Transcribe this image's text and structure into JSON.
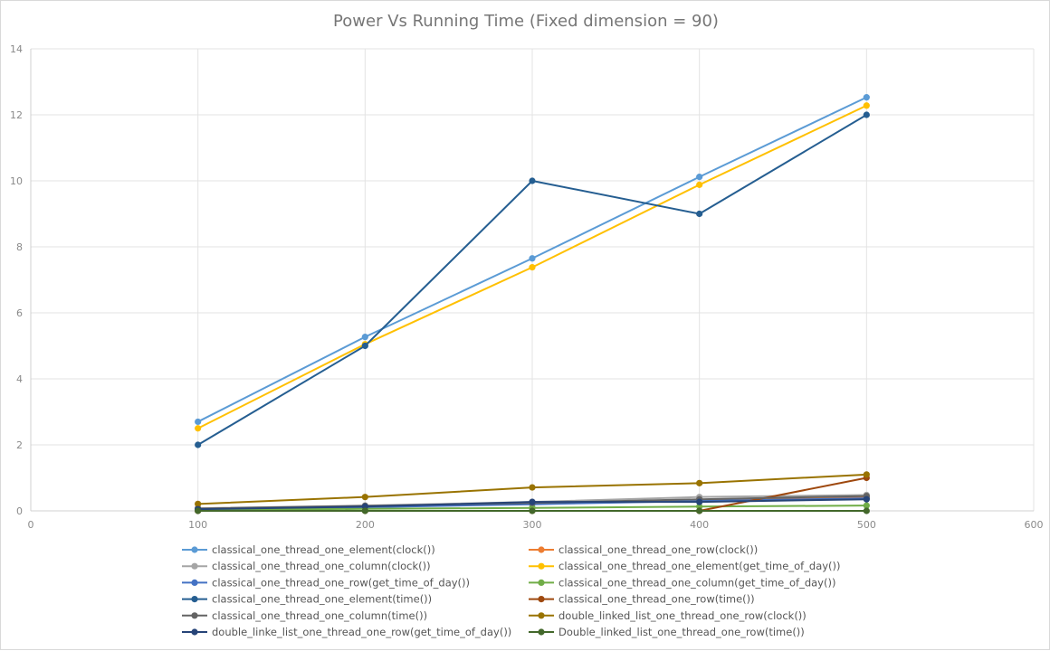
{
  "chart_data": {
    "type": "line",
    "title": "Power Vs Running Time (Fixed dimension = 90)",
    "xlabel": "",
    "ylabel": "",
    "xlim": [
      0,
      600
    ],
    "ylim": [
      0,
      14
    ],
    "xticks": [
      "0",
      "100",
      "200",
      "300",
      "400",
      "500",
      "600"
    ],
    "yticks": [
      "0",
      "2",
      "4",
      "6",
      "8",
      "10",
      "12",
      "14"
    ],
    "grid": true,
    "legend_position": "bottom",
    "x": [
      100,
      200,
      300,
      400,
      500
    ],
    "series": [
      {
        "name": "classical_one_thread_one_element(clock())",
        "color": "#5b9bd5",
        "values": [
          2.7,
          5.27,
          7.65,
          10.12,
          12.53
        ]
      },
      {
        "name": "classical_one_thread_one_row(clock())",
        "color": "#ed7d31",
        "values": [
          0.06,
          0.12,
          0.22,
          0.32,
          0.42
        ]
      },
      {
        "name": "classical_one_thread_one_column(clock())",
        "color": "#a5a5a5",
        "values": [
          0.08,
          0.16,
          0.27,
          0.42,
          0.48
        ]
      },
      {
        "name": "classical_one_thread_one_element(get_time_of_day())",
        "color": "#ffc000",
        "values": [
          2.5,
          5.05,
          7.38,
          9.88,
          12.28
        ]
      },
      {
        "name": "classical_one_thread_one_row(get_time_of_day())",
        "color": "#4472c4",
        "values": [
          0.05,
          0.11,
          0.2,
          0.3,
          0.38
        ]
      },
      {
        "name": "classical_one_thread_one_column(get_time_of_day())",
        "color": "#70ad47",
        "values": [
          0.03,
          0.06,
          0.09,
          0.13,
          0.16
        ]
      },
      {
        "name": "classical_one_thread_one_element(time())",
        "color": "#255e91",
        "values": [
          2,
          5,
          10,
          9,
          12
        ]
      },
      {
        "name": "classical_one_thread_one_row(time())",
        "color": "#9e480e",
        "values": [
          0,
          0,
          0,
          0,
          1
        ]
      },
      {
        "name": "classical_one_thread_one_column(time())",
        "color": "#636363",
        "values": [
          0.07,
          0.15,
          0.24,
          0.35,
          0.45
        ]
      },
      {
        "name": "double_linked_list_one_thread_one_row(clock())",
        "color": "#997300",
        "values": [
          0.21,
          0.42,
          0.71,
          0.84,
          1.1
        ]
      },
      {
        "name": "double_linke_list_one_thread_one_row(get_time_of_day())",
        "color": "#264478",
        "values": [
          0.05,
          0.13,
          0.27,
          0.27,
          0.35
        ]
      },
      {
        "name": "Double_linked_list_one_thread_one_row(time())",
        "color": "#43682b",
        "values": [
          0,
          0,
          0,
          0,
          0
        ]
      }
    ]
  }
}
